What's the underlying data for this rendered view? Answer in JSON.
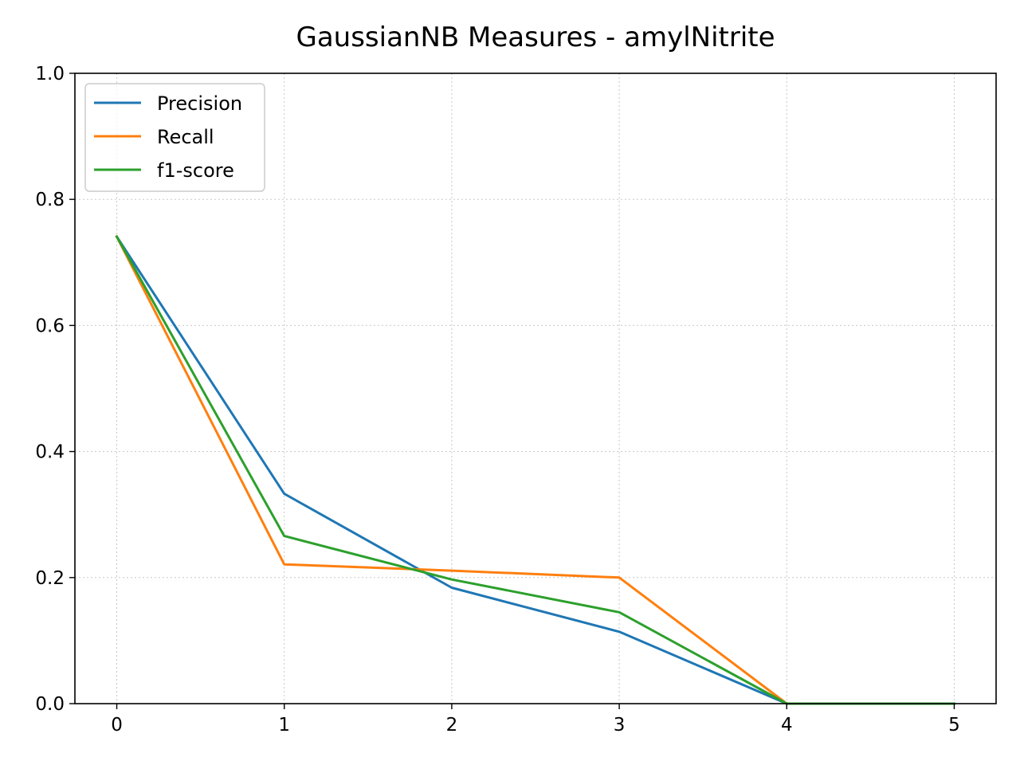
{
  "chart_data": {
    "type": "line",
    "title": "GaussianNB Measures - amylNitrite",
    "xlabel": "",
    "ylabel": "",
    "x": [
      0,
      1,
      2,
      3,
      4,
      5
    ],
    "xlim": [
      -0.25,
      5.25
    ],
    "ylim": [
      0,
      1.0
    ],
    "x_ticks": [
      "0",
      "1",
      "2",
      "3",
      "4",
      "5"
    ],
    "y_ticks": [
      "0.0",
      "0.2",
      "0.4",
      "0.6",
      "0.8",
      "1.0"
    ],
    "grid": true,
    "legend_position": "top-left",
    "series": [
      {
        "name": "Precision",
        "color": "#1f77b4",
        "values": [
          0.741,
          0.333,
          0.184,
          0.114,
          0.0,
          0.0
        ]
      },
      {
        "name": "Recall",
        "color": "#ff7f0e",
        "values": [
          0.741,
          0.221,
          0.211,
          0.2,
          0.0,
          0.0
        ]
      },
      {
        "name": "f1-score",
        "color": "#2ca02c",
        "values": [
          0.741,
          0.266,
          0.197,
          0.145,
          0.0,
          0.0
        ]
      }
    ]
  }
}
